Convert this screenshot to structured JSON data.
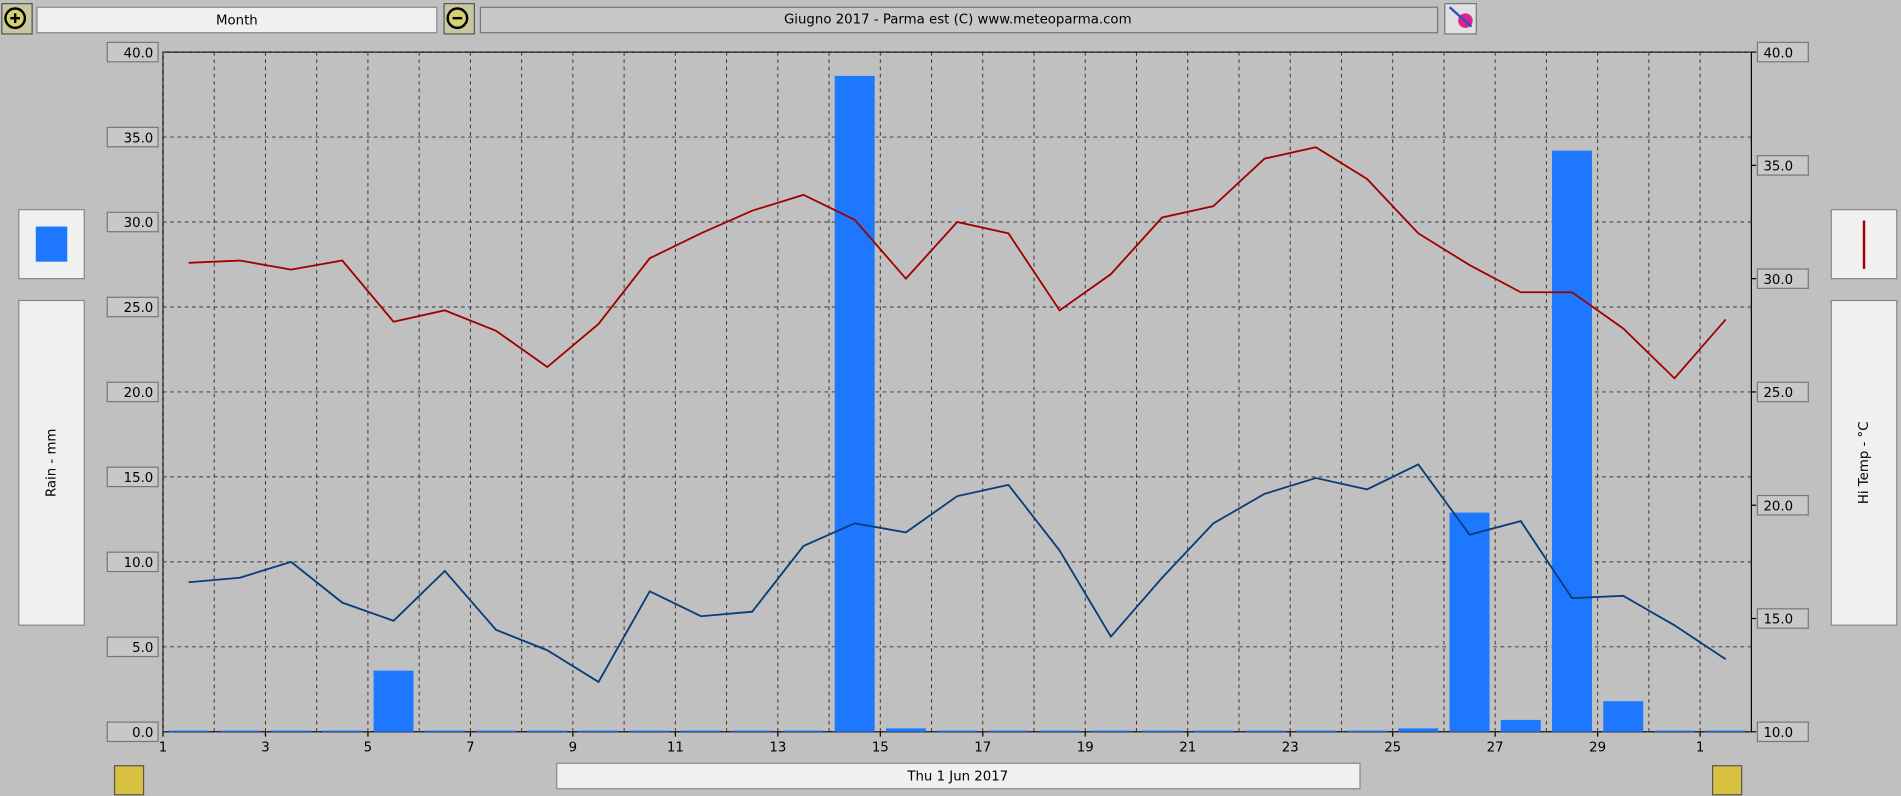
{
  "header": {
    "period": "Month",
    "title": "Giugno 2017 - Parma est (C) www.meteoparma.com"
  },
  "chart_data": {
    "type": "bar-line",
    "y_label": "Rain - mm",
    "y2_label": "Hi Temp - °C",
    "x_label": "Thu 1 Jun 2017",
    "x": [
      1.5,
      2.5,
      3.5,
      4.5,
      5.5,
      6.5,
      7.5,
      8.5,
      9.5,
      10.5,
      11.5,
      12.5,
      13.5,
      14.5,
      15.5,
      16.5,
      17.5,
      18.5,
      19.5,
      20.5,
      21.5,
      22.5,
      23.5,
      24.5,
      25.5,
      26.5,
      27.5,
      28.5,
      29.5,
      30.5,
      31.5
    ],
    "xlim": [
      1,
      32
    ],
    "xticks": [
      1,
      3,
      5,
      7,
      9,
      11,
      13,
      15,
      17,
      19,
      21,
      23,
      25,
      27,
      29,
      {
        "value": 31,
        "label": "1"
      }
    ],
    "ylim": [
      0,
      40
    ],
    "yticks": [
      {
        "value": 0,
        "label": "0.0"
      },
      {
        "value": 5,
        "label": "5.0"
      },
      {
        "value": 10,
        "label": "10.0"
      },
      {
        "value": 15,
        "label": "15.0"
      },
      {
        "value": 20,
        "label": "20.0"
      },
      {
        "value": 25,
        "label": "25.0"
      },
      {
        "value": 30,
        "label": "30.0"
      },
      {
        "value": 35,
        "label": "35.0"
      },
      {
        "value": 40,
        "label": "40.0"
      }
    ],
    "y2lim": [
      10,
      40
    ],
    "y2ticks": [
      {
        "value": 10,
        "label": "10.0"
      },
      {
        "value": 15,
        "label": "15.0"
      },
      {
        "value": 20,
        "label": "20.0"
      },
      {
        "value": 25,
        "label": "25.0"
      },
      {
        "value": 30,
        "label": "30.0"
      },
      {
        "value": 35,
        "label": "35.0"
      },
      {
        "value": 40,
        "label": "40.0"
      }
    ],
    "grid": true,
    "series": [
      {
        "type": "bar",
        "color": "#1e78ff",
        "values": [
          0,
          0,
          0,
          0,
          3.6,
          0,
          0,
          0,
          0,
          0,
          0,
          0,
          0,
          38.6,
          0.2,
          0,
          0,
          0,
          0,
          0,
          0,
          0,
          0,
          0,
          0.2,
          12.9,
          0.7,
          34.2,
          1.8,
          0,
          0
        ]
      },
      {
        "type": "line",
        "axis": "y2",
        "color": "#a00000",
        "values": [
          30.7,
          30.8,
          30.4,
          30.8,
          28.1,
          28.6,
          27.7,
          26.1,
          28.0,
          30.9,
          32.0,
          33.0,
          33.7,
          32.6,
          30.0,
          32.5,
          32.0,
          28.6,
          30.2,
          32.7,
          33.2,
          35.3,
          35.8,
          34.4,
          32.0,
          30.6,
          29.4,
          29.4,
          27.8,
          25.6,
          28.2
        ]
      },
      {
        "type": "line",
        "axis": "y2",
        "color": "#0a3c78",
        "values": [
          16.6,
          16.8,
          17.5,
          15.7,
          14.9,
          17.1,
          14.5,
          13.6,
          12.2,
          16.2,
          15.1,
          15.3,
          18.2,
          19.2,
          18.8,
          20.4,
          20.9,
          18.0,
          14.2,
          16.8,
          19.2,
          20.5,
          21.2,
          20.7,
          21.8,
          18.7,
          19.3,
          15.9,
          16.0,
          14.7,
          13.2
        ]
      }
    ]
  }
}
